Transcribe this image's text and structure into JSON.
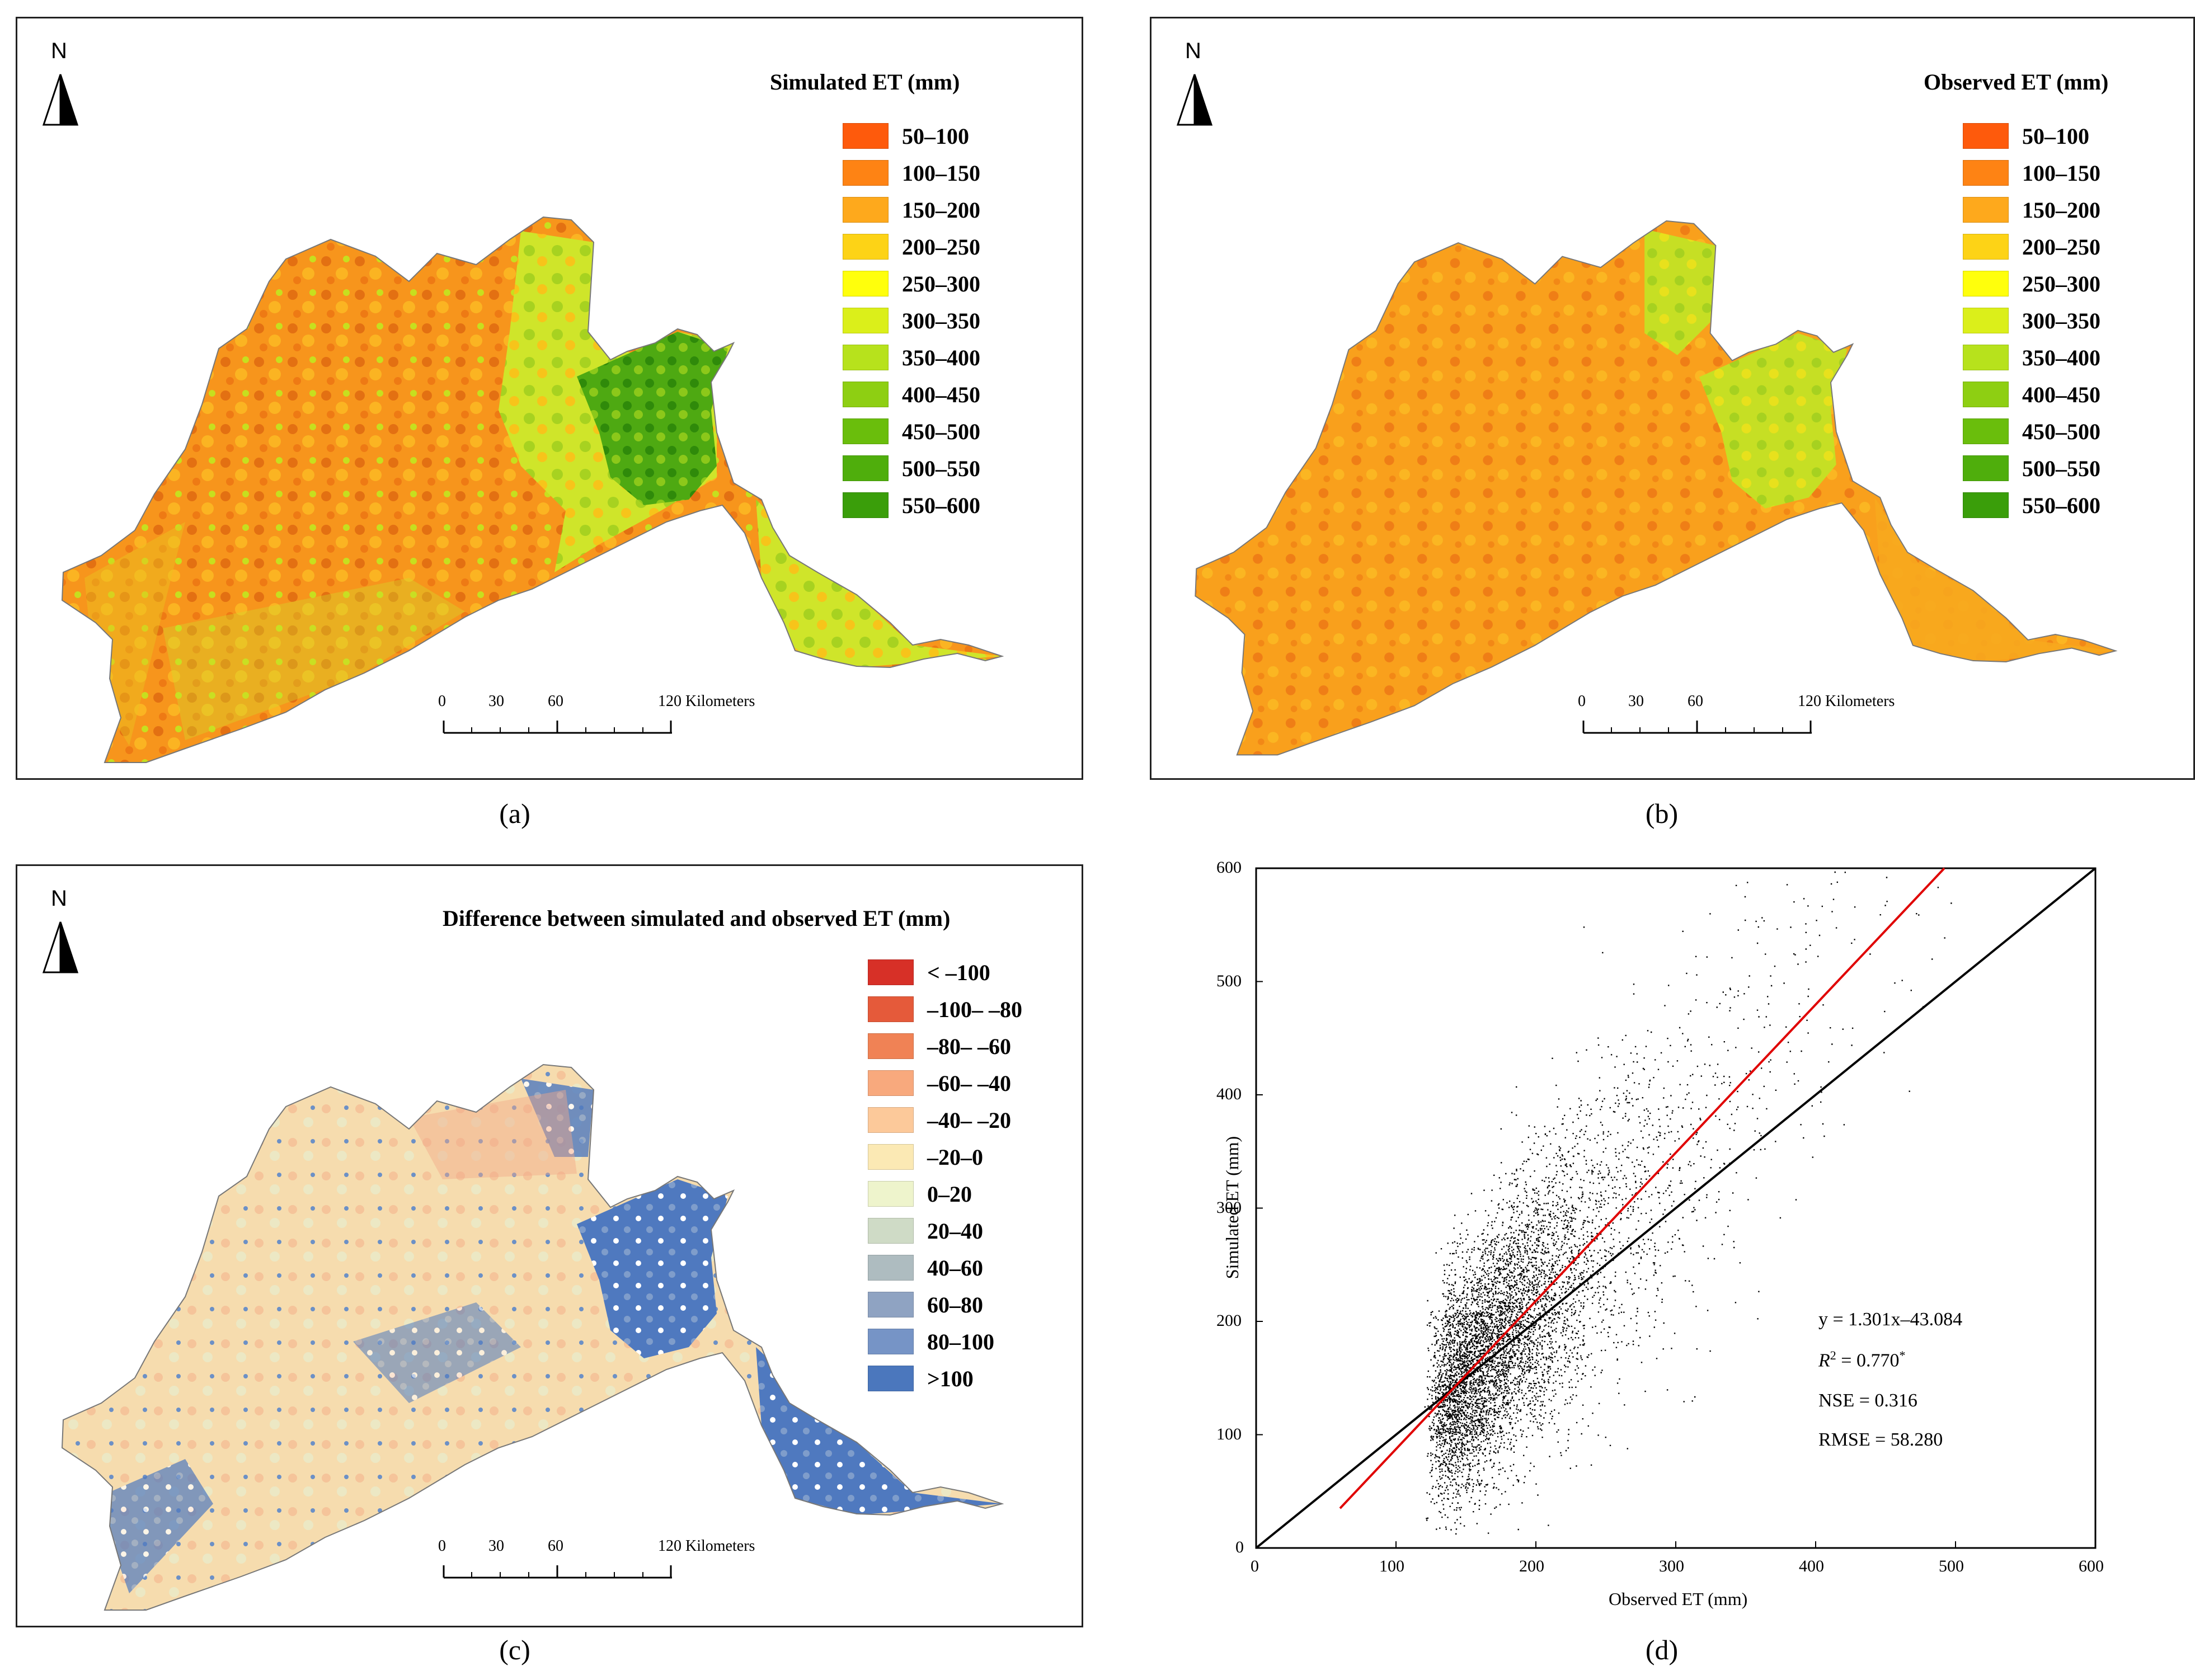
{
  "north_label": "N",
  "scale_bar": {
    "ticks": [
      "0",
      "30",
      "60",
      "120 Kilometers"
    ]
  },
  "colors": {
    "et": [
      "#fe5a0c",
      "#fe8314",
      "#fea91c",
      "#fdd316",
      "#ffff0c",
      "#dbef1a",
      "#b7e21c",
      "#8ecf12",
      "#6abe0c",
      "#4fae0c",
      "#3a9e0a"
    ],
    "diff": [
      "#d73027",
      "#e55a3a",
      "#f08255",
      "#f8a97d",
      "#fcc99a",
      "#fbe9b4",
      "#eef4cc",
      "#cfdbc6",
      "#aebcc0",
      "#8fa3c2",
      "#7694c6",
      "#4b77bd"
    ]
  },
  "panels": {
    "a": {
      "caption": "(a)",
      "legend_title": "Simulated ET (mm)",
      "legend_items": [
        "50–100",
        "100–150",
        "150–200",
        "200–250",
        "250–300",
        "300–350",
        "350–400",
        "400–450",
        "450–500",
        "500–550",
        "550–600"
      ]
    },
    "b": {
      "caption": "(b)",
      "legend_title": "Observed ET (mm)",
      "legend_items": [
        "50–100",
        "100–150",
        "150–200",
        "200–250",
        "250–300",
        "300–350",
        "350–400",
        "400–450",
        "450–500",
        "500–550",
        "550–600"
      ]
    },
    "c": {
      "caption": "(c)",
      "legend_title": "Difference between simulated and observed ET (mm)",
      "legend_items": [
        "< –100",
        "–100– –80",
        "–80– –60",
        "–60– –40",
        "–40– –20",
        "–20–0",
        "0–20",
        "20–40",
        "40–60",
        "60–80",
        "80–100",
        ">100"
      ]
    },
    "d": {
      "caption": "(d)"
    }
  },
  "chart_data": {
    "type": "scatter",
    "xlabel": "Observed ET (mm)",
    "ylabel": "Simulated ET (mm)",
    "xlim": [
      0,
      600
    ],
    "ylim": [
      0,
      600
    ],
    "xticks": [
      0,
      100,
      200,
      300,
      400,
      500,
      600
    ],
    "yticks": [
      0,
      100,
      200,
      300,
      400,
      500,
      600
    ],
    "series": [
      {
        "name": "1:1 line",
        "x": [
          0,
          600
        ],
        "y": [
          0,
          600
        ],
        "color": "#000000"
      },
      {
        "name": "fit",
        "x": [
          60,
          492
        ],
        "y": [
          35,
          600
        ],
        "color": "#e00000"
      }
    ],
    "stats": {
      "equation": "y = 1.301x–43.084",
      "r2_symbol": "R",
      "r2_sup": "2",
      "r2_value": " = 0.770",
      "r2_star": "*",
      "nse": "NSE = 0.316",
      "rmse": "RMSE = 58.280"
    }
  }
}
